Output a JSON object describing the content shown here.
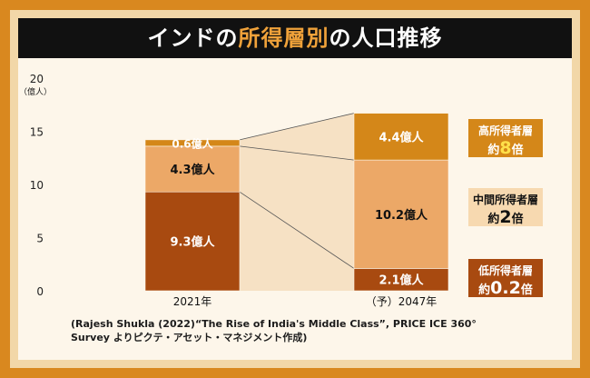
{
  "title": {
    "before": "インドの",
    "highlight": "所得層別",
    "after": "の人口推移"
  },
  "chart_data": {
    "type": "bar",
    "stacked": true,
    "categories": [
      "2021年",
      "（予）2047年"
    ],
    "series": [
      {
        "name": "低所得者層",
        "values": [
          9.3,
          2.1
        ],
        "labels": [
          "9.3億人",
          "2.1億人"
        ],
        "color": "#a84a10"
      },
      {
        "name": "中間所得者層",
        "values": [
          4.3,
          10.2
        ],
        "labels": [
          "4.3億人",
          "10.2億人"
        ],
        "color": "#eca867"
      },
      {
        "name": "高所得者層",
        "values": [
          0.6,
          4.4
        ],
        "labels": [
          "0.6億人",
          "4.4億人"
        ],
        "color": "#d48719"
      }
    ],
    "y_ticks": [
      "0",
      "5",
      "10",
      "15",
      "20"
    ],
    "y_unit": "（億人）",
    "ylim": [
      0,
      20
    ],
    "grid": false
  },
  "badges": [
    {
      "label": "高所得者層",
      "prefix": "約",
      "num": "8",
      "suffix": "倍",
      "bg": "#d48719",
      "num_color": "#ffe04a"
    },
    {
      "label": "中間所得者層",
      "prefix": "約",
      "num": "2",
      "suffix": "倍",
      "bg": "#f7d9b0",
      "num_color": "#111111"
    },
    {
      "label": "低所得者層",
      "prefix": "約",
      "num": "0.2",
      "suffix": "倍",
      "bg": "#a84a10",
      "num_color": "#ffffff"
    }
  ],
  "source": {
    "line1": "(Rajesh Shukla (2022)“The Rise of India's Middle Class”, PRICE ICE 360°",
    "line2": "Survey よりピクテ・アセット・マネジメント作成)"
  }
}
